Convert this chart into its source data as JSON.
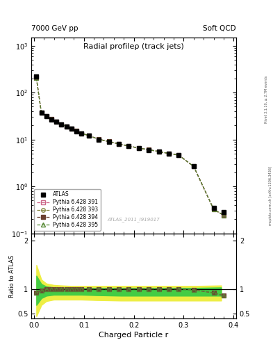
{
  "title_left": "7000 GeV pp",
  "title_right": "Soft QCD",
  "main_title": "Radial profileρ (track jets)",
  "watermark": "ATLAS_2011_I919017",
  "right_label": "Rivet 3.1.10, ≥ 2.7M events",
  "right_label2": "mcplots.cern.ch [arXiv:1306.3436]",
  "xlabel": "Charged Particle r",
  "ylabel_bottom": "Ratio to ATLAS",
  "r_values": [
    0.005,
    0.015,
    0.025,
    0.035,
    0.045,
    0.055,
    0.065,
    0.075,
    0.085,
    0.095,
    0.11,
    0.13,
    0.15,
    0.17,
    0.19,
    0.21,
    0.23,
    0.25,
    0.27,
    0.29,
    0.32,
    0.36,
    0.38
  ],
  "atlas_values": [
    220,
    38,
    32,
    27,
    24,
    21,
    19,
    17,
    15,
    13.5,
    12,
    10,
    9,
    8,
    7.2,
    6.5,
    6.0,
    5.5,
    5.0,
    4.6,
    2.7,
    0.35,
    0.28
  ],
  "ratio_r": [
    0.005,
    0.015,
    0.025,
    0.035,
    0.045,
    0.055,
    0.065,
    0.075,
    0.085,
    0.095,
    0.11,
    0.13,
    0.15,
    0.17,
    0.19,
    0.21,
    0.23,
    0.25,
    0.27,
    0.29,
    0.32,
    0.36,
    0.38
  ],
  "ratio_391": [
    0.93,
    0.97,
    1.0,
    1.01,
    1.01,
    1.01,
    1.01,
    1.01,
    1.01,
    1.01,
    1.01,
    1.01,
    1.01,
    1.01,
    1.01,
    1.01,
    1.01,
    1.01,
    1.01,
    1.01,
    0.99,
    0.93,
    0.87
  ],
  "ratio_393": [
    0.93,
    0.97,
    1.0,
    1.01,
    1.01,
    1.01,
    1.01,
    1.01,
    1.01,
    1.01,
    1.01,
    1.01,
    1.01,
    1.01,
    1.01,
    1.01,
    1.01,
    1.01,
    1.01,
    1.01,
    0.99,
    0.93,
    0.87
  ],
  "ratio_394": [
    0.93,
    0.97,
    1.0,
    1.01,
    1.01,
    1.01,
    1.01,
    1.01,
    1.01,
    1.01,
    1.01,
    1.01,
    1.01,
    1.01,
    1.01,
    1.01,
    1.01,
    1.01,
    1.01,
    1.01,
    0.99,
    0.93,
    0.87
  ],
  "ratio_395": [
    0.93,
    0.97,
    1.0,
    1.01,
    1.01,
    1.01,
    1.01,
    1.01,
    1.01,
    1.01,
    1.01,
    1.01,
    1.01,
    1.01,
    1.01,
    1.01,
    1.01,
    1.01,
    1.01,
    1.01,
    0.99,
    0.93,
    0.87
  ],
  "yellow_band_r": [
    0.005,
    0.015,
    0.025,
    0.04,
    0.055,
    0.075,
    0.095,
    0.125,
    0.175,
    0.225,
    0.275,
    0.325,
    0.375
  ],
  "yellow_band_upper": [
    1.5,
    1.2,
    1.12,
    1.09,
    1.08,
    1.07,
    1.07,
    1.07,
    1.07,
    1.07,
    1.07,
    1.07,
    1.08
  ],
  "yellow_band_lower": [
    0.45,
    0.68,
    0.76,
    0.79,
    0.79,
    0.79,
    0.79,
    0.78,
    0.77,
    0.77,
    0.77,
    0.77,
    0.77
  ],
  "green_band_r": [
    0.005,
    0.015,
    0.025,
    0.04,
    0.055,
    0.075,
    0.095,
    0.125,
    0.175,
    0.225,
    0.275,
    0.325,
    0.375
  ],
  "green_band_upper": [
    1.28,
    1.11,
    1.06,
    1.04,
    1.04,
    1.03,
    1.03,
    1.03,
    1.03,
    1.03,
    1.03,
    1.03,
    1.04
  ],
  "green_band_lower": [
    0.68,
    0.82,
    0.87,
    0.89,
    0.89,
    0.89,
    0.89,
    0.88,
    0.87,
    0.87,
    0.87,
    0.87,
    0.87
  ]
}
